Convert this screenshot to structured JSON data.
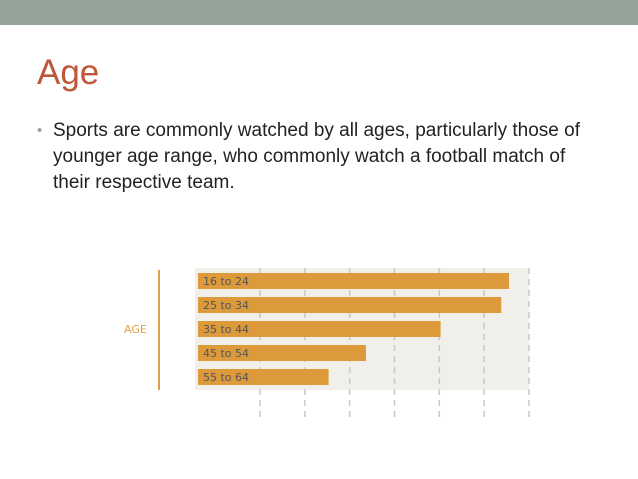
{
  "slide": {
    "title": "Age",
    "bullets": [
      "Sports are commonly watched by all ages, particularly those of younger age range, who commonly watch a football match of their respective team."
    ]
  },
  "colors": {
    "top_bar": "#94a39a",
    "title": "#c0563a",
    "bar": "#dd9a3b",
    "axis_label": "#e0a048",
    "category_label": "#555555",
    "plot_background": "#f1efe9",
    "grid": "#c8c8c8"
  },
  "chart_data": {
    "type": "bar",
    "orientation": "horizontal",
    "title": "",
    "ylabel": "AGE",
    "xlabel": "",
    "categories": [
      "16 to 24",
      "25 to 34",
      "35 to 44",
      "45 to 54",
      "55 to 64"
    ],
    "values": [
      100,
      97.5,
      78,
      54,
      42
    ],
    "xlim": [
      0,
      105
    ],
    "x_gridline_count": 7,
    "grid": true,
    "legend": "none"
  }
}
